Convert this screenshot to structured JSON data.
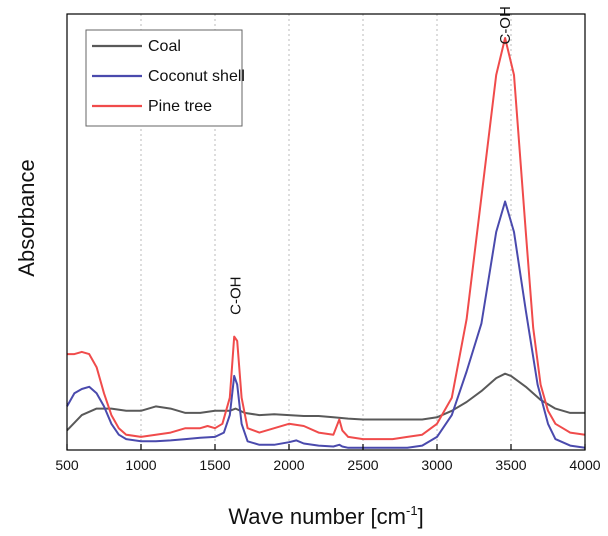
{
  "chart_data": {
    "type": "line",
    "xlabel": "Wave number [cm",
    "xlabel_sup": "-1",
    "xlabel_tail": "]",
    "ylabel": "Absorbance",
    "xlim": [
      500,
      4000
    ],
    "ylim": [
      0,
      1
    ],
    "x_ticks": [
      500,
      1000,
      1500,
      2000,
      2500,
      3000,
      3500,
      4000
    ],
    "x_tick_labels": [
      "500",
      "1000",
      "1500",
      "2000",
      "2500",
      "3000",
      "3500",
      "4000"
    ],
    "grid": "vertical dotted",
    "legend_position": "top-left",
    "annotations": [
      {
        "text": "C-OH",
        "x": 1640,
        "y": 0.31
      },
      {
        "text": "C-OH",
        "x": 3460,
        "y": 0.93
      }
    ],
    "series": [
      {
        "name": "Coal",
        "color": "#595959",
        "points": [
          [
            500,
            0.045
          ],
          [
            600,
            0.08
          ],
          [
            700,
            0.095
          ],
          [
            800,
            0.095
          ],
          [
            900,
            0.09
          ],
          [
            1000,
            0.09
          ],
          [
            1100,
            0.1
          ],
          [
            1200,
            0.095
          ],
          [
            1300,
            0.085
          ],
          [
            1400,
            0.085
          ],
          [
            1500,
            0.09
          ],
          [
            1600,
            0.09
          ],
          [
            1640,
            0.095
          ],
          [
            1700,
            0.085
          ],
          [
            1800,
            0.08
          ],
          [
            1900,
            0.082
          ],
          [
            2000,
            0.08
          ],
          [
            2100,
            0.078
          ],
          [
            2200,
            0.078
          ],
          [
            2300,
            0.075
          ],
          [
            2400,
            0.072
          ],
          [
            2500,
            0.07
          ],
          [
            2600,
            0.07
          ],
          [
            2700,
            0.07
          ],
          [
            2800,
            0.07
          ],
          [
            2900,
            0.07
          ],
          [
            3000,
            0.075
          ],
          [
            3100,
            0.09
          ],
          [
            3200,
            0.11
          ],
          [
            3300,
            0.135
          ],
          [
            3400,
            0.165
          ],
          [
            3460,
            0.175
          ],
          [
            3500,
            0.17
          ],
          [
            3600,
            0.145
          ],
          [
            3700,
            0.115
          ],
          [
            3800,
            0.095
          ],
          [
            3900,
            0.085
          ],
          [
            4000,
            0.085
          ]
        ]
      },
      {
        "name": "Coconut shell",
        "color": "#4a4aad",
        "points": [
          [
            500,
            0.1
          ],
          [
            550,
            0.13
          ],
          [
            600,
            0.14
          ],
          [
            650,
            0.145
          ],
          [
            700,
            0.13
          ],
          [
            750,
            0.1
          ],
          [
            800,
            0.06
          ],
          [
            850,
            0.035
          ],
          [
            900,
            0.025
          ],
          [
            1000,
            0.02
          ],
          [
            1100,
            0.02
          ],
          [
            1200,
            0.022
          ],
          [
            1300,
            0.025
          ],
          [
            1400,
            0.028
          ],
          [
            1500,
            0.03
          ],
          [
            1560,
            0.04
          ],
          [
            1600,
            0.08
          ],
          [
            1630,
            0.17
          ],
          [
            1650,
            0.15
          ],
          [
            1680,
            0.06
          ],
          [
            1720,
            0.02
          ],
          [
            1800,
            0.012
          ],
          [
            1900,
            0.012
          ],
          [
            2000,
            0.018
          ],
          [
            2050,
            0.022
          ],
          [
            2100,
            0.015
          ],
          [
            2200,
            0.01
          ],
          [
            2300,
            0.008
          ],
          [
            2340,
            0.012
          ],
          [
            2360,
            0.008
          ],
          [
            2400,
            0.005
          ],
          [
            2500,
            0.005
          ],
          [
            2600,
            0.005
          ],
          [
            2700,
            0.005
          ],
          [
            2800,
            0.005
          ],
          [
            2900,
            0.01
          ],
          [
            3000,
            0.03
          ],
          [
            3100,
            0.08
          ],
          [
            3200,
            0.18
          ],
          [
            3300,
            0.29
          ],
          [
            3400,
            0.5
          ],
          [
            3460,
            0.57
          ],
          [
            3520,
            0.5
          ],
          [
            3600,
            0.32
          ],
          [
            3680,
            0.15
          ],
          [
            3750,
            0.06
          ],
          [
            3800,
            0.025
          ],
          [
            3900,
            0.01
          ],
          [
            4000,
            0.005
          ]
        ]
      },
      {
        "name": "Pine tree",
        "color": "#f04b4b",
        "points": [
          [
            500,
            0.22
          ],
          [
            550,
            0.22
          ],
          [
            600,
            0.225
          ],
          [
            650,
            0.22
          ],
          [
            700,
            0.19
          ],
          [
            750,
            0.13
          ],
          [
            800,
            0.08
          ],
          [
            850,
            0.05
          ],
          [
            900,
            0.035
          ],
          [
            1000,
            0.03
          ],
          [
            1100,
            0.035
          ],
          [
            1200,
            0.04
          ],
          [
            1300,
            0.05
          ],
          [
            1400,
            0.05
          ],
          [
            1450,
            0.055
          ],
          [
            1500,
            0.05
          ],
          [
            1550,
            0.06
          ],
          [
            1600,
            0.12
          ],
          [
            1630,
            0.26
          ],
          [
            1650,
            0.25
          ],
          [
            1680,
            0.12
          ],
          [
            1720,
            0.05
          ],
          [
            1800,
            0.04
          ],
          [
            1900,
            0.05
          ],
          [
            2000,
            0.06
          ],
          [
            2100,
            0.055
          ],
          [
            2200,
            0.04
          ],
          [
            2300,
            0.035
          ],
          [
            2340,
            0.07
          ],
          [
            2360,
            0.045
          ],
          [
            2400,
            0.03
          ],
          [
            2500,
            0.025
          ],
          [
            2600,
            0.025
          ],
          [
            2700,
            0.025
          ],
          [
            2800,
            0.03
          ],
          [
            2900,
            0.035
          ],
          [
            3000,
            0.06
          ],
          [
            3100,
            0.12
          ],
          [
            3200,
            0.3
          ],
          [
            3300,
            0.58
          ],
          [
            3400,
            0.86
          ],
          [
            3460,
            0.945
          ],
          [
            3520,
            0.86
          ],
          [
            3600,
            0.5
          ],
          [
            3650,
            0.28
          ],
          [
            3700,
            0.15
          ],
          [
            3750,
            0.09
          ],
          [
            3800,
            0.06
          ],
          [
            3850,
            0.05
          ],
          [
            3900,
            0.04
          ],
          [
            4000,
            0.035
          ]
        ]
      }
    ]
  }
}
